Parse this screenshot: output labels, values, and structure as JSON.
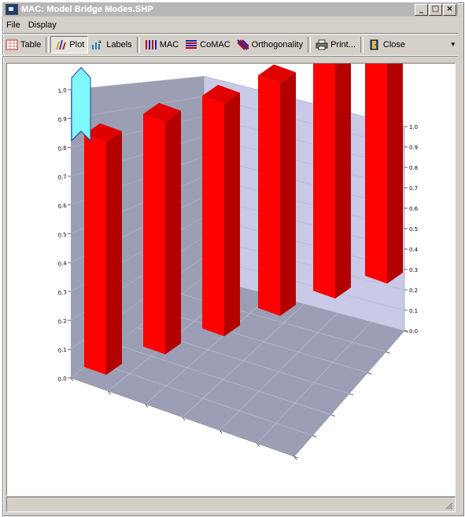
{
  "window": {
    "title": "MAC: Model Bridge Modes.SHP"
  },
  "title_buttons": {
    "minimize": "_",
    "maximize": "□",
    "close": "×"
  },
  "menu": [
    {
      "label": "File"
    },
    {
      "label": "Display"
    }
  ],
  "toolbar": {
    "table_label": "Table",
    "plot_label": "Plot",
    "labels_label": "Labels",
    "mac_label": "MAC",
    "comac_label": "CoMAC",
    "orthogonality_label": "Orthogonality",
    "print_label": "Print...",
    "close_label": "Close",
    "overflow": "▾"
  },
  "colors": {
    "bar_front": "#ff0000",
    "bar_side": "#b30000",
    "bar_top": "#e00000",
    "floor": "#9b9eb5",
    "back_wall": "#c8cae8",
    "left_wall": "#9c9fb4",
    "selector": "#7ff9ff"
  },
  "chart_data": {
    "type": "bar",
    "categories": [
      "1",
      "2",
      "3",
      "4",
      "5",
      "6"
    ],
    "values": [
      1.0,
      1.0,
      1.0,
      1.0,
      1.0,
      1.0
    ],
    "ylim": [
      0,
      1.0
    ],
    "yticks_right": [
      "0.0",
      "0.1",
      "0.2",
      "0.3",
      "0.4",
      "0.5",
      "0.6",
      "0.7",
      "0.8",
      "0.9",
      "1.0"
    ],
    "yticks_left": [
      "0.0",
      "0.1",
      "0.2",
      "0.3",
      "0.4",
      "0.5",
      "0.6",
      "0.7",
      "0.8",
      "0.9",
      "1.0"
    ],
    "grid": true
  }
}
